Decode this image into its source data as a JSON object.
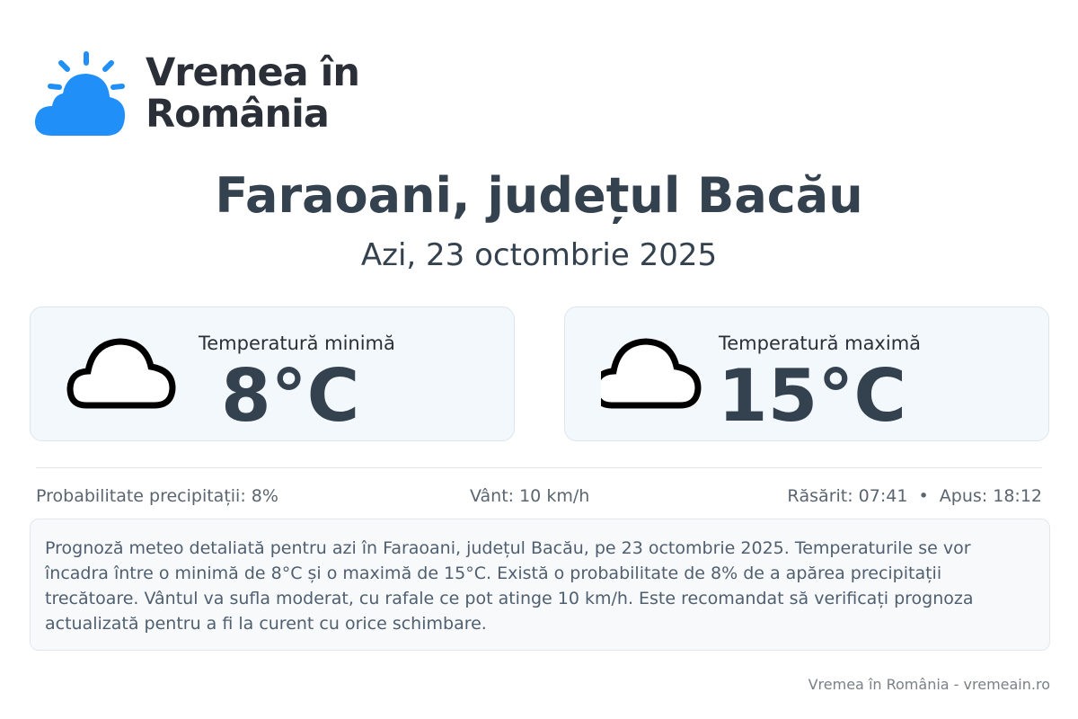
{
  "brand": {
    "line1": "Vremea în",
    "line2": "România",
    "accent": "#2090f8"
  },
  "title": "Faraoani, județul Bacău",
  "date": "Azi, 23 octombrie 2025",
  "min": {
    "label": "Temperatură minimă",
    "value": "8°C",
    "icon": "cloud-icon"
  },
  "max": {
    "label": "Temperatură maximă",
    "value": "15°C",
    "icon": "cloud-icon"
  },
  "info": {
    "precip": "Probabilitate precipitații: 8%",
    "wind": "Vânt: 10 km/h",
    "sun": "Răsărit: 07:41  •  Apus: 18:12"
  },
  "description": "Prognoză meteo detaliată pentru azi în Faraoani, județul Bacău, pe 23 octombrie 2025. Temperaturile se vor încadra între o minimă de 8°C și o maximă de 15°C. Există o probabilitate de 8% de a apărea precipitații trecătoare. Vântul va sufla moderat, cu rafale ce pot atinge 10 km/h. Este recomandat să verificați prognoza actualizată pentru a fi la curent cu orice schimbare.",
  "footer": "Vremea în România - vremeain.ro"
}
